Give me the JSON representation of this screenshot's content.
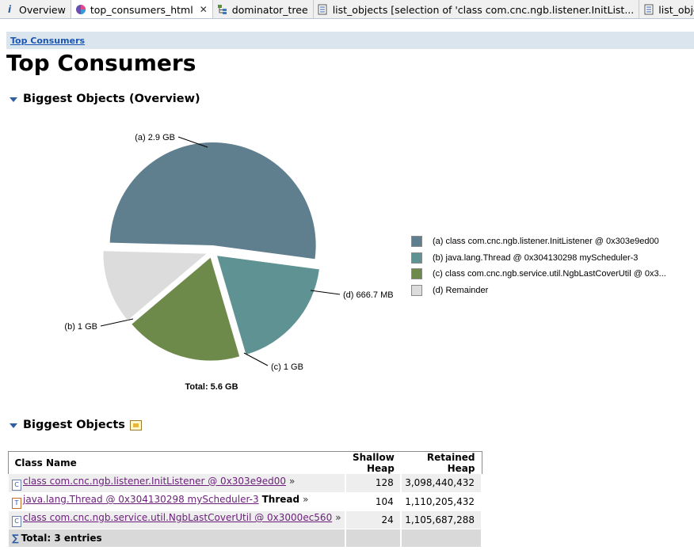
{
  "tabs": [
    {
      "label": "Overview",
      "icon": "info-icon",
      "active": false,
      "closable": false
    },
    {
      "label": "top_consumers_html",
      "icon": "report-icon",
      "active": true,
      "closable": true
    },
    {
      "label": "dominator_tree",
      "icon": "tree-icon",
      "active": false,
      "closable": false
    },
    {
      "label": "list_objects [selection of 'class com.cnc.ngb.listener.InitList...",
      "icon": "list-icon",
      "active": false,
      "closable": false
    },
    {
      "label": "list_objects [selectio",
      "icon": "list-icon",
      "active": false,
      "closable": false
    }
  ],
  "breadcrumb": "Top Consumers",
  "page_title": "Top Consumers",
  "section_overview": "Biggest Objects (Overview)",
  "section_table": "Biggest Objects",
  "chart_data": {
    "type": "pie",
    "slices": [
      {
        "label": "(a)",
        "value_text": "2.9 GB",
        "value_gb": 2.9,
        "color": "#5f7f8e",
        "legend": "class com.cnc.ngb.listener.InitListener @ 0x303e9ed00",
        "exploded": true
      },
      {
        "label": "(b)",
        "value_text": "1 GB",
        "value_gb": 1.03,
        "color": "#5f9292",
        "legend": "java.lang.Thread @ 0x304130298  myScheduler-3",
        "exploded": true
      },
      {
        "label": "(c)",
        "value_text": "1 GB",
        "value_gb": 1.03,
        "color": "#6e8a4a",
        "legend": "class com.cnc.ngb.service.util.NgbLastCoverUtil @ 0x3...",
        "exploded": true
      },
      {
        "label": "(d)",
        "value_text": "666.7 MB",
        "value_gb": 0.65,
        "color": "#dcdcdc",
        "legend": "Remainder",
        "exploded": true
      }
    ],
    "total_label": "Total: 5.6 GB"
  },
  "table": {
    "columns": [
      "Class Name",
      "Shallow Heap",
      "Retained Heap"
    ],
    "rows": [
      {
        "icon": "class-icon",
        "name": "class com.cnc.ngb.listener.InitListener @ 0x303e9ed00",
        "suffix": "",
        "shallow": "128",
        "retained": "3,098,440,432"
      },
      {
        "icon": "thread-icon",
        "name": "java.lang.Thread @ 0x304130298 myScheduler-3",
        "suffix": "Thread",
        "shallow": "104",
        "retained": "1,110,205,432"
      },
      {
        "icon": "class-icon",
        "name": "class com.cnc.ngb.service.util.NgbLastCoverUtil @ 0x3000ec560",
        "suffix": "",
        "shallow": "24",
        "retained": "1,105,687,288"
      }
    ],
    "more_glyph": "»",
    "total_row": "Total: 3 entries"
  }
}
